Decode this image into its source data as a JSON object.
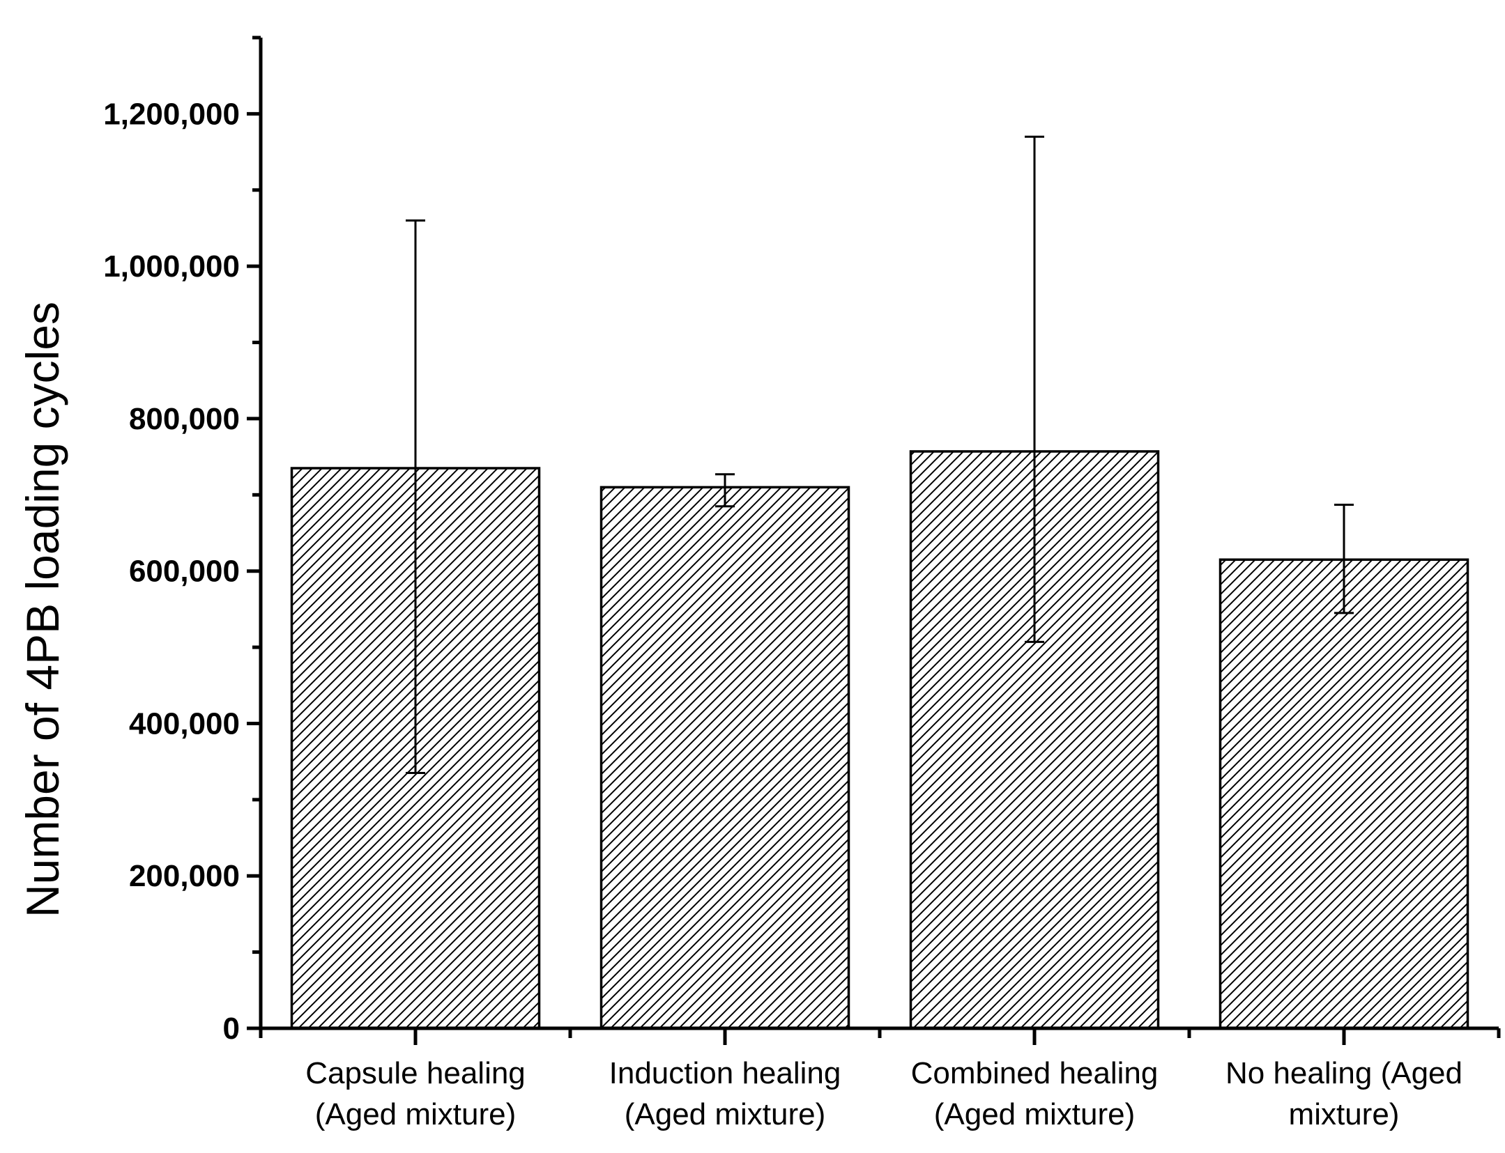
{
  "chart_data": {
    "type": "bar",
    "title": "",
    "xlabel": "",
    "ylabel": "Number of 4PB loading cycles",
    "ylim": [
      0,
      1300000
    ],
    "yticks": [
      0,
      200000,
      400000,
      600000,
      800000,
      1000000,
      1200000
    ],
    "ytick_labels": [
      "0",
      "200,000",
      "400,000",
      "600,000",
      "800,000",
      "1,000,000",
      "1,200,000"
    ],
    "grid": false,
    "categories": [
      [
        "Capsule healing",
        "(Aged mixture)"
      ],
      [
        "Induction healing",
        "(Aged mixture)"
      ],
      [
        "Combined healing",
        "(Aged mixture)"
      ],
      [
        "No healing (Aged",
        "mixture)"
      ]
    ],
    "values": [
      735000,
      710000,
      757000,
      615000
    ],
    "error_low": [
      335000,
      685000,
      507000,
      545000
    ],
    "error_high": [
      1060000,
      727000,
      1170000,
      687000
    ],
    "bar_fill": "hatched-diagonal",
    "colors": {
      "bar_stroke": "#000000",
      "hatch": "#000000",
      "background": "#ffffff"
    }
  }
}
